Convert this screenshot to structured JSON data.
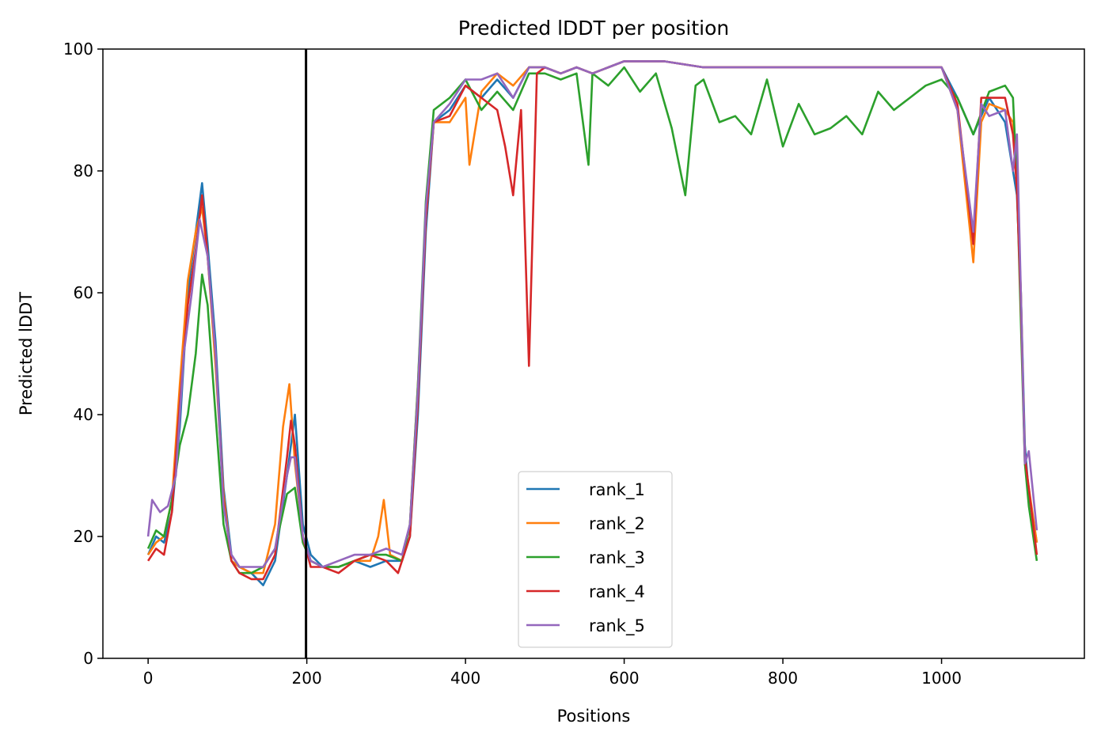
{
  "chart_data": {
    "type": "line",
    "title": "Predicted lDDT per position",
    "xlabel": "Positions",
    "ylabel": "Predicted lDDT",
    "xlim": [
      -57,
      1180
    ],
    "ylim": [
      0,
      100
    ],
    "xticks": [
      0,
      200,
      400,
      600,
      800,
      1000
    ],
    "yticks": [
      0,
      20,
      40,
      60,
      80,
      100
    ],
    "vline_x": 199,
    "grid": false,
    "legend_position": "lower center",
    "series": [
      {
        "name": "rank_1",
        "color": "#1f77b4",
        "points": [
          [
            0,
            17
          ],
          [
            10,
            20
          ],
          [
            20,
            19
          ],
          [
            30,
            24
          ],
          [
            40,
            38
          ],
          [
            50,
            60
          ],
          [
            60,
            70
          ],
          [
            68,
            78
          ],
          [
            75,
            68
          ],
          [
            85,
            52
          ],
          [
            95,
            28
          ],
          [
            105,
            17
          ],
          [
            115,
            15
          ],
          [
            130,
            14
          ],
          [
            145,
            12
          ],
          [
            160,
            16
          ],
          [
            175,
            30
          ],
          [
            185,
            40
          ],
          [
            195,
            22
          ],
          [
            205,
            17
          ],
          [
            220,
            15
          ],
          [
            240,
            15
          ],
          [
            260,
            16
          ],
          [
            280,
            15
          ],
          [
            300,
            16
          ],
          [
            320,
            16
          ],
          [
            330,
            20
          ],
          [
            340,
            40
          ],
          [
            350,
            70
          ],
          [
            360,
            88
          ],
          [
            380,
            90
          ],
          [
            400,
            94
          ],
          [
            420,
            92
          ],
          [
            440,
            95
          ],
          [
            460,
            92
          ],
          [
            480,
            97
          ],
          [
            500,
            97
          ],
          [
            520,
            96
          ],
          [
            540,
            97
          ],
          [
            560,
            96
          ],
          [
            580,
            97
          ],
          [
            600,
            98
          ],
          [
            650,
            98
          ],
          [
            700,
            97
          ],
          [
            750,
            97
          ],
          [
            800,
            97
          ],
          [
            850,
            97
          ],
          [
            900,
            97
          ],
          [
            950,
            97
          ],
          [
            1000,
            97
          ],
          [
            1020,
            92
          ],
          [
            1040,
            86
          ],
          [
            1060,
            92
          ],
          [
            1080,
            88
          ],
          [
            1090,
            80
          ],
          [
            1095,
            76
          ],
          [
            1100,
            60
          ],
          [
            1105,
            35
          ],
          [
            1110,
            27
          ],
          [
            1120,
            19
          ]
        ]
      },
      {
        "name": "rank_2",
        "color": "#ff7f0e",
        "points": [
          [
            0,
            17
          ],
          [
            10,
            19
          ],
          [
            20,
            20
          ],
          [
            30,
            26
          ],
          [
            40,
            45
          ],
          [
            50,
            62
          ],
          [
            60,
            70
          ],
          [
            68,
            74
          ],
          [
            75,
            66
          ],
          [
            85,
            48
          ],
          [
            95,
            27
          ],
          [
            105,
            16
          ],
          [
            115,
            15
          ],
          [
            130,
            14
          ],
          [
            145,
            14
          ],
          [
            160,
            22
          ],
          [
            170,
            38
          ],
          [
            178,
            45
          ],
          [
            185,
            32
          ],
          [
            195,
            20
          ],
          [
            205,
            16
          ],
          [
            220,
            15
          ],
          [
            240,
            15
          ],
          [
            260,
            16
          ],
          [
            280,
            16
          ],
          [
            290,
            20
          ],
          [
            297,
            26
          ],
          [
            305,
            17
          ],
          [
            320,
            16
          ],
          [
            330,
            22
          ],
          [
            340,
            45
          ],
          [
            350,
            72
          ],
          [
            360,
            88
          ],
          [
            380,
            88
          ],
          [
            400,
            92
          ],
          [
            405,
            81
          ],
          [
            420,
            93
          ],
          [
            440,
            96
          ],
          [
            460,
            94
          ],
          [
            480,
            97
          ],
          [
            500,
            97
          ],
          [
            520,
            96
          ],
          [
            540,
            97
          ],
          [
            560,
            96
          ],
          [
            580,
            97
          ],
          [
            600,
            98
          ],
          [
            650,
            98
          ],
          [
            700,
            97
          ],
          [
            750,
            97
          ],
          [
            800,
            97
          ],
          [
            850,
            97
          ],
          [
            900,
            97
          ],
          [
            950,
            97
          ],
          [
            1000,
            97
          ],
          [
            1020,
            90
          ],
          [
            1040,
            65
          ],
          [
            1050,
            88
          ],
          [
            1060,
            91
          ],
          [
            1080,
            90
          ],
          [
            1090,
            88
          ],
          [
            1095,
            78
          ],
          [
            1100,
            60
          ],
          [
            1105,
            32
          ],
          [
            1110,
            28
          ],
          [
            1120,
            19
          ]
        ]
      },
      {
        "name": "rank_3",
        "color": "#2ca02c",
        "points": [
          [
            0,
            18
          ],
          [
            10,
            21
          ],
          [
            20,
            20
          ],
          [
            30,
            26
          ],
          [
            40,
            35
          ],
          [
            50,
            40
          ],
          [
            60,
            50
          ],
          [
            68,
            63
          ],
          [
            75,
            58
          ],
          [
            85,
            40
          ],
          [
            95,
            22
          ],
          [
            105,
            16
          ],
          [
            115,
            14
          ],
          [
            130,
            14
          ],
          [
            145,
            15
          ],
          [
            160,
            18
          ],
          [
            175,
            27
          ],
          [
            185,
            28
          ],
          [
            195,
            19
          ],
          [
            205,
            16
          ],
          [
            220,
            15
          ],
          [
            240,
            15
          ],
          [
            260,
            16
          ],
          [
            280,
            17
          ],
          [
            300,
            17
          ],
          [
            320,
            16
          ],
          [
            330,
            22
          ],
          [
            340,
            45
          ],
          [
            350,
            75
          ],
          [
            360,
            90
          ],
          [
            380,
            92
          ],
          [
            400,
            95
          ],
          [
            420,
            90
          ],
          [
            440,
            93
          ],
          [
            460,
            90
          ],
          [
            480,
            96
          ],
          [
            500,
            96
          ],
          [
            520,
            95
          ],
          [
            540,
            96
          ],
          [
            555,
            81
          ],
          [
            560,
            96
          ],
          [
            580,
            94
          ],
          [
            600,
            97
          ],
          [
            620,
            93
          ],
          [
            640,
            96
          ],
          [
            660,
            87
          ],
          [
            677,
            76
          ],
          [
            690,
            94
          ],
          [
            700,
            95
          ],
          [
            720,
            88
          ],
          [
            740,
            89
          ],
          [
            760,
            86
          ],
          [
            780,
            95
          ],
          [
            800,
            84
          ],
          [
            820,
            91
          ],
          [
            840,
            86
          ],
          [
            860,
            87
          ],
          [
            880,
            89
          ],
          [
            900,
            86
          ],
          [
            920,
            93
          ],
          [
            940,
            90
          ],
          [
            960,
            92
          ],
          [
            980,
            94
          ],
          [
            1000,
            95
          ],
          [
            1020,
            92
          ],
          [
            1040,
            86
          ],
          [
            1060,
            93
          ],
          [
            1080,
            94
          ],
          [
            1090,
            92
          ],
          [
            1095,
            78
          ],
          [
            1100,
            55
          ],
          [
            1105,
            32
          ],
          [
            1110,
            25
          ],
          [
            1120,
            16
          ]
        ]
      },
      {
        "name": "rank_4",
        "color": "#d62728",
        "points": [
          [
            0,
            16
          ],
          [
            10,
            18
          ],
          [
            20,
            17
          ],
          [
            30,
            24
          ],
          [
            40,
            42
          ],
          [
            50,
            58
          ],
          [
            60,
            67
          ],
          [
            68,
            76
          ],
          [
            75,
            66
          ],
          [
            85,
            50
          ],
          [
            95,
            26
          ],
          [
            105,
            16
          ],
          [
            115,
            14
          ],
          [
            130,
            13
          ],
          [
            145,
            13
          ],
          [
            160,
            17
          ],
          [
            175,
            33
          ],
          [
            180,
            39
          ],
          [
            185,
            35
          ],
          [
            195,
            20
          ],
          [
            205,
            15
          ],
          [
            220,
            15
          ],
          [
            240,
            14
          ],
          [
            260,
            16
          ],
          [
            280,
            17
          ],
          [
            300,
            16
          ],
          [
            315,
            14
          ],
          [
            330,
            20
          ],
          [
            340,
            42
          ],
          [
            350,
            72
          ],
          [
            360,
            88
          ],
          [
            380,
            89
          ],
          [
            400,
            94
          ],
          [
            420,
            92
          ],
          [
            440,
            90
          ],
          [
            450,
            84
          ],
          [
            460,
            76
          ],
          [
            470,
            90
          ],
          [
            480,
            48
          ],
          [
            490,
            96
          ],
          [
            500,
            97
          ],
          [
            520,
            96
          ],
          [
            540,
            97
          ],
          [
            560,
            96
          ],
          [
            580,
            97
          ],
          [
            600,
            98
          ],
          [
            650,
            98
          ],
          [
            700,
            97
          ],
          [
            750,
            97
          ],
          [
            800,
            97
          ],
          [
            850,
            97
          ],
          [
            900,
            97
          ],
          [
            950,
            97
          ],
          [
            1000,
            97
          ],
          [
            1020,
            91
          ],
          [
            1040,
            68
          ],
          [
            1050,
            92
          ],
          [
            1060,
            92
          ],
          [
            1080,
            92
          ],
          [
            1090,
            86
          ],
          [
            1095,
            77
          ],
          [
            1100,
            58
          ],
          [
            1105,
            33
          ],
          [
            1110,
            28
          ],
          [
            1120,
            17
          ]
        ]
      },
      {
        "name": "rank_5",
        "color": "#9467bd",
        "points": [
          [
            0,
            20
          ],
          [
            5,
            26
          ],
          [
            15,
            24
          ],
          [
            25,
            25
          ],
          [
            35,
            30
          ],
          [
            45,
            50
          ],
          [
            55,
            60
          ],
          [
            65,
            72
          ],
          [
            75,
            66
          ],
          [
            85,
            50
          ],
          [
            95,
            25
          ],
          [
            105,
            17
          ],
          [
            115,
            15
          ],
          [
            130,
            15
          ],
          [
            145,
            15
          ],
          [
            160,
            18
          ],
          [
            175,
            30
          ],
          [
            180,
            33
          ],
          [
            185,
            33
          ],
          [
            195,
            20
          ],
          [
            205,
            16
          ],
          [
            220,
            15
          ],
          [
            240,
            16
          ],
          [
            260,
            17
          ],
          [
            280,
            17
          ],
          [
            300,
            18
          ],
          [
            320,
            17
          ],
          [
            330,
            22
          ],
          [
            340,
            44
          ],
          [
            350,
            74
          ],
          [
            360,
            88
          ],
          [
            380,
            91
          ],
          [
            400,
            95
          ],
          [
            420,
            95
          ],
          [
            440,
            96
          ],
          [
            460,
            92
          ],
          [
            480,
            97
          ],
          [
            500,
            97
          ],
          [
            520,
            96
          ],
          [
            540,
            97
          ],
          [
            560,
            96
          ],
          [
            580,
            97
          ],
          [
            600,
            98
          ],
          [
            650,
            98
          ],
          [
            700,
            97
          ],
          [
            750,
            97
          ],
          [
            800,
            97
          ],
          [
            850,
            97
          ],
          [
            900,
            97
          ],
          [
            950,
            97
          ],
          [
            1000,
            97
          ],
          [
            1020,
            90
          ],
          [
            1040,
            70
          ],
          [
            1050,
            91
          ],
          [
            1060,
            89
          ],
          [
            1080,
            90
          ],
          [
            1090,
            80
          ],
          [
            1095,
            86
          ],
          [
            1100,
            60
          ],
          [
            1105,
            32
          ],
          [
            1110,
            34
          ],
          [
            1120,
            21
          ]
        ]
      }
    ]
  }
}
